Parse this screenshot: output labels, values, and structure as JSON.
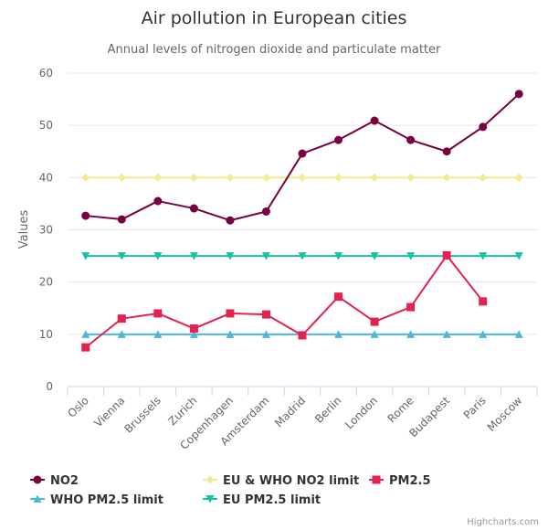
{
  "chart_data": {
    "type": "line",
    "title": "Air pollution in European cities",
    "subtitle": "Annual levels of nitrogen dioxide and particulate matter",
    "ylabel": "Values",
    "xlabel": "",
    "ylim": [
      0,
      60
    ],
    "yticks": [
      0,
      10,
      20,
      30,
      40,
      50,
      60
    ],
    "grid": true,
    "legend": "bottom",
    "categories": [
      "Oslo",
      "Vienna",
      "Brussels",
      "Zurich",
      "Copenhagen",
      "Amsterdam",
      "Madrid",
      "Berlin",
      "London",
      "Rome",
      "Budapest",
      "Paris",
      "Moscow"
    ],
    "series": [
      {
        "name": "NO2",
        "color": "#7a0040",
        "marker": "circle",
        "values": [
          32.7,
          32.0,
          35.5,
          34.1,
          31.8,
          33.5,
          44.6,
          47.2,
          50.9,
          47.2,
          45.0,
          49.7,
          56.0
        ]
      },
      {
        "name": "EU & WHO NO2 limit",
        "color": "#f6ea8c",
        "marker": "diamond",
        "values": [
          40,
          40,
          40,
          40,
          40,
          40,
          40,
          40,
          40,
          40,
          40,
          40,
          40
        ]
      },
      {
        "name": "PM2.5",
        "color": "#e4214f",
        "marker": "square",
        "values": [
          7.5,
          13.0,
          14.0,
          11.1,
          14.0,
          13.8,
          9.8,
          17.2,
          12.4,
          15.2,
          25.1,
          16.3,
          null
        ]
      },
      {
        "name": "WHO PM2.5 limit",
        "color": "#4bb7d9",
        "marker": "triangle",
        "values": [
          10,
          10,
          10,
          10,
          10,
          10,
          10,
          10,
          10,
          10,
          10,
          10,
          10
        ]
      },
      {
        "name": "EU PM2.5 limit",
        "color": "#15c3a3",
        "marker": "triangle-down",
        "values": [
          25,
          25,
          25,
          25,
          25,
          25,
          25,
          25,
          25,
          25,
          25,
          25,
          25
        ]
      }
    ],
    "credits": "Highcharts.com"
  }
}
